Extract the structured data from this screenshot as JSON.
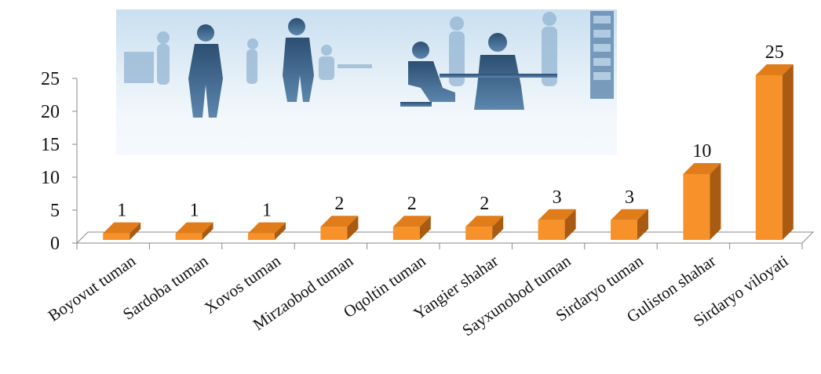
{
  "colors": {
    "bar_front": "#F7922A",
    "bar_top": "#E07C1A",
    "bar_side": "#A95B12",
    "axis": "#8a8a8a",
    "silhouette": "#2c4f72",
    "office_bg": "#d6e7f3"
  },
  "chart_data": {
    "type": "bar",
    "categories": [
      "Boyovut tuman",
      "Sardoba tuman",
      "Xovos tuman",
      "Mirzaobod tuman",
      "Oqoltin tuman",
      "Yangier shahar",
      "Sayxunobod tuman",
      "Sirdaryo tuman",
      "Guliston shahar",
      "Sirdaryo viloyati"
    ],
    "values": [
      1,
      1,
      1,
      2,
      2,
      2,
      3,
      3,
      10,
      25
    ],
    "data_labels": [
      "1",
      "1",
      "1",
      "2",
      "2",
      "2",
      "3",
      "3",
      "10",
      "25"
    ],
    "y_ticks": [
      0,
      5,
      10,
      15,
      20,
      25
    ],
    "ylim": [
      0,
      25
    ],
    "title": "",
    "xlabel": "",
    "ylabel": "",
    "grid": false,
    "legend": "none",
    "style": "3d-column",
    "decoration": "office-workers-silhouette-icon"
  }
}
